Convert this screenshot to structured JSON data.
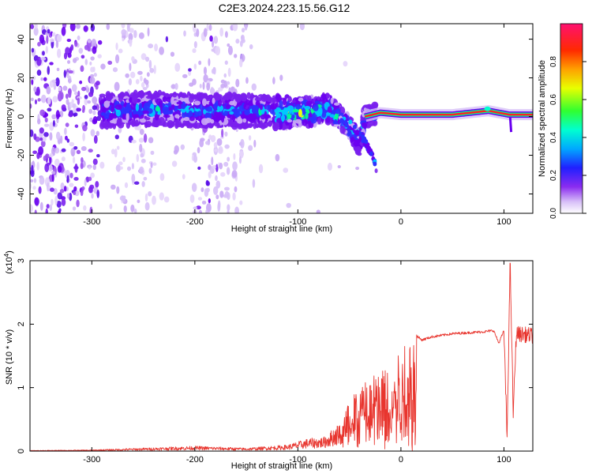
{
  "figure": {
    "title": "C2E3.2024.223.15.56.G12"
  },
  "chart_data": [
    {
      "type": "heatmap",
      "xlabel": "Height of straight line (km)",
      "ylabel": "Frequency (Hz)",
      "xlim": [
        -360,
        128
      ],
      "ylim": [
        -50,
        48
      ],
      "x_ticks": [
        -300,
        -200,
        -100,
        0,
        100
      ],
      "y_ticks": [
        -40,
        -20,
        0,
        20,
        40
      ],
      "grid": false,
      "colorbar": {
        "label": "Normalized spectral amplitude",
        "range": [
          0.0,
          1.0
        ],
        "ticks": [
          "0.0",
          "0.2",
          "0.4",
          "0.6",
          "0.8"
        ],
        "colors": [
          "#ffffff",
          "#c9a9f5",
          "#6a00f0",
          "#3030ff",
          "#00c8ff",
          "#00ff90",
          "#ffff00",
          "#ff8000",
          "#ff0000",
          "#ff1060"
        ]
      },
      "ridge": [
        {
          "x": -290,
          "y": 3
        },
        {
          "x": -250,
          "y": 4
        },
        {
          "x": -200,
          "y": 3
        },
        {
          "x": -150,
          "y": 3
        },
        {
          "x": -100,
          "y": 2
        },
        {
          "x": -70,
          "y": 4
        },
        {
          "x": -50,
          "y": -5
        },
        {
          "x": -40,
          "y": -15
        },
        {
          "x": -35,
          "y": 0
        },
        {
          "x": -20,
          "y": 2
        },
        {
          "x": 0,
          "y": 1
        },
        {
          "x": 50,
          "y": 1
        },
        {
          "x": 85,
          "y": 3
        },
        {
          "x": 105,
          "y": 1
        },
        {
          "x": 128,
          "y": 1
        }
      ]
    },
    {
      "type": "line",
      "xlabel": "Height of straight line (km)",
      "ylabel": "SNR (10 * v/v)",
      "y_multiplier_label": "(x10^4)",
      "xlim": [
        -360,
        128
      ],
      "ylim": [
        0,
        3
      ],
      "x_ticks": [
        -300,
        -200,
        -100,
        0,
        100
      ],
      "y_ticks": [
        0,
        1,
        2,
        3
      ],
      "grid": false,
      "series": [
        {
          "color": "#e8352e",
          "envelope": [
            {
              "x": -360,
              "y": 0.01
            },
            {
              "x": -300,
              "y": 0.02
            },
            {
              "x": -250,
              "y": 0.05
            },
            {
              "x": -200,
              "y": 0.08
            },
            {
              "x": -150,
              "y": 0.05
            },
            {
              "x": -110,
              "y": 0.1
            },
            {
              "x": -90,
              "y": 0.2
            },
            {
              "x": -75,
              "y": 0.22
            },
            {
              "x": -60,
              "y": 0.45
            },
            {
              "x": -50,
              "y": 0.8
            },
            {
              "x": -40,
              "y": 1.1
            },
            {
              "x": -25,
              "y": 1.3
            },
            {
              "x": -10,
              "y": 1.5
            },
            {
              "x": 0,
              "y": 1.7
            },
            {
              "x": 10,
              "y": 1.9
            },
            {
              "x": 20,
              "y": 1.75
            },
            {
              "x": 30,
              "y": 1.8
            },
            {
              "x": 50,
              "y": 1.85
            },
            {
              "x": 80,
              "y": 1.88
            },
            {
              "x": 90,
              "y": 1.9
            },
            {
              "x": 95,
              "y": 1.7
            },
            {
              "x": 100,
              "y": 1.9
            },
            {
              "x": 103,
              "y": 0.2
            },
            {
              "x": 106,
              "y": 3.0
            },
            {
              "x": 109,
              "y": 0.6
            },
            {
              "x": 112,
              "y": 1.85
            },
            {
              "x": 128,
              "y": 1.82
            }
          ]
        }
      ]
    }
  ]
}
